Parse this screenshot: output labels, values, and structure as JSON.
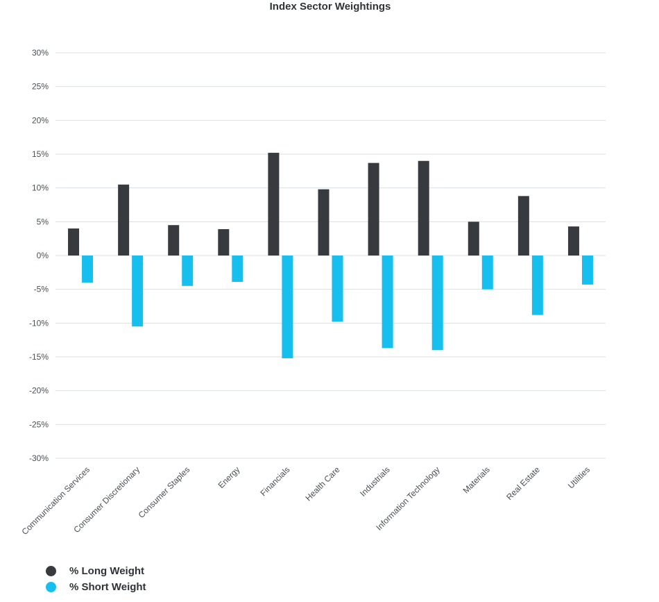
{
  "chart_data": {
    "type": "bar",
    "title": "Index Sector Weightings",
    "categories": [
      "Communication Services",
      "Consumer Discretionary",
      "Consumer Staples",
      "Energy",
      "Financials",
      "Health Care",
      "Industrials",
      "Information Technology",
      "Materials",
      "Real Estate",
      "Utilities"
    ],
    "series": [
      {
        "name": "% Long Weight",
        "color": "#373a3e",
        "values": [
          4.0,
          10.5,
          4.5,
          3.9,
          15.2,
          9.8,
          13.7,
          14.0,
          5.0,
          8.8,
          4.3
        ]
      },
      {
        "name": "% Short Weight",
        "color": "#17bfee",
        "values": [
          -4.0,
          -10.5,
          -4.5,
          -3.9,
          -15.2,
          -9.8,
          -13.7,
          -14.0,
          -5.0,
          -8.8,
          -4.3
        ]
      }
    ],
    "ylim": [
      -30,
      30
    ],
    "yticks": [
      30,
      25,
      20,
      15,
      10,
      5,
      0,
      -5,
      -10,
      -15,
      -20,
      -25,
      -30
    ],
    "ytick_labels": [
      "30%",
      "25%",
      "20%",
      "15%",
      "10%",
      "5%",
      "0%",
      "-5%",
      "-10%",
      "-15%",
      "-20%",
      "-25%",
      "-30%"
    ],
    "grid": true,
    "legend_position": "bottom-left",
    "xlabel": "",
    "ylabel": ""
  }
}
